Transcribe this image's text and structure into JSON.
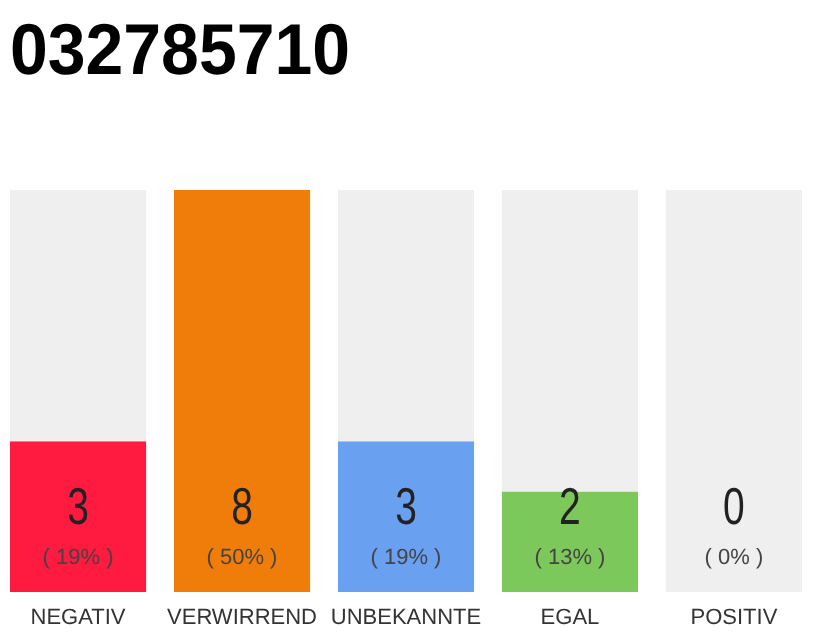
{
  "chart_data": {
    "type": "bar",
    "title": "032785710",
    "stacked": true,
    "categories": [
      "NEGATIV",
      "VERWIRREND",
      "UNBEKANNTE",
      "EGAL",
      "POSITIV"
    ],
    "series": [
      {
        "colors": [
          "#ff1a40",
          "#f07d0a",
          "#6aa0f0",
          "#7dc85a",
          "#efefef"
        ],
        "values": [
          3,
          8,
          3,
          2,
          0
        ],
        "value_labels": [
          "3",
          "8",
          "3",
          "2",
          null
        ]
      },
      {
        "color": "#efefef",
        "values": [
          5,
          0,
          5,
          6,
          8
        ]
      }
    ],
    "annotations": [
      "( 19% )",
      "( 50% )",
      "( 19% )",
      "( 13% )",
      {
        "text": "0",
        "x": "POSITIV",
        "y": 0
      },
      "( 0% )"
    ]
  }
}
